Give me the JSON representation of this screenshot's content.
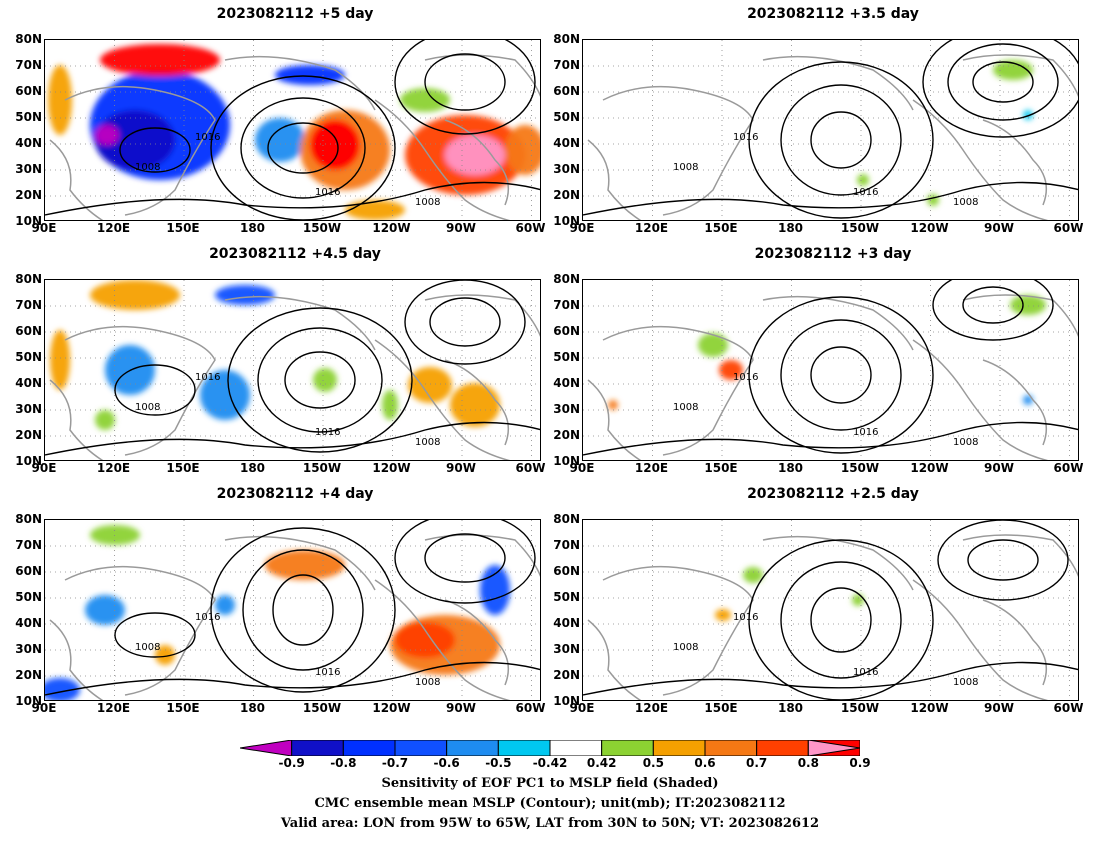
{
  "panels": [
    {
      "title": "2023082112  +5 day"
    },
    {
      "title": "2023082112  +3.5 day"
    },
    {
      "title": "2023082112  +4.5 day"
    },
    {
      "title": "2023082112  +3 day"
    },
    {
      "title": "2023082112  +4 day"
    },
    {
      "title": "2023082112  +2.5 day"
    }
  ],
  "axes": {
    "lat_labels": [
      "80N",
      "70N",
      "60N",
      "50N",
      "40N",
      "30N",
      "20N",
      "10N"
    ],
    "lon_labels": [
      "90E",
      "120E",
      "150E",
      "180",
      "150W",
      "120W",
      "90W",
      "60W"
    ]
  },
  "contour_labels": [
    "1016",
    "1008"
  ],
  "colorbar": {
    "labels": [
      "-0.9",
      "-0.8",
      "-0.7",
      "-0.6",
      "-0.5",
      "-0.42",
      "0.42",
      "0.5",
      "0.6",
      "0.7",
      "0.8",
      "0.9"
    ],
    "colors": [
      "#c000c0",
      "#1010c8",
      "#0030ff",
      "#1050ff",
      "#1e8cf0",
      "#00c8f0",
      "#ffffff",
      "#8cd232",
      "#f5a000",
      "#f57814",
      "#ff4000",
      "#ff0000",
      "#ff96c8"
    ]
  },
  "footer": {
    "line1": "Sensitivity of EOF PC1 to MSLP field (Shaded)",
    "line2": "CMC ensemble mean MSLP (Contour); unit(mb); IT:2023082112",
    "line3": "Valid area: LON from 95W to 65W, LAT from 30N to 50N; VT: 2023082612"
  }
}
